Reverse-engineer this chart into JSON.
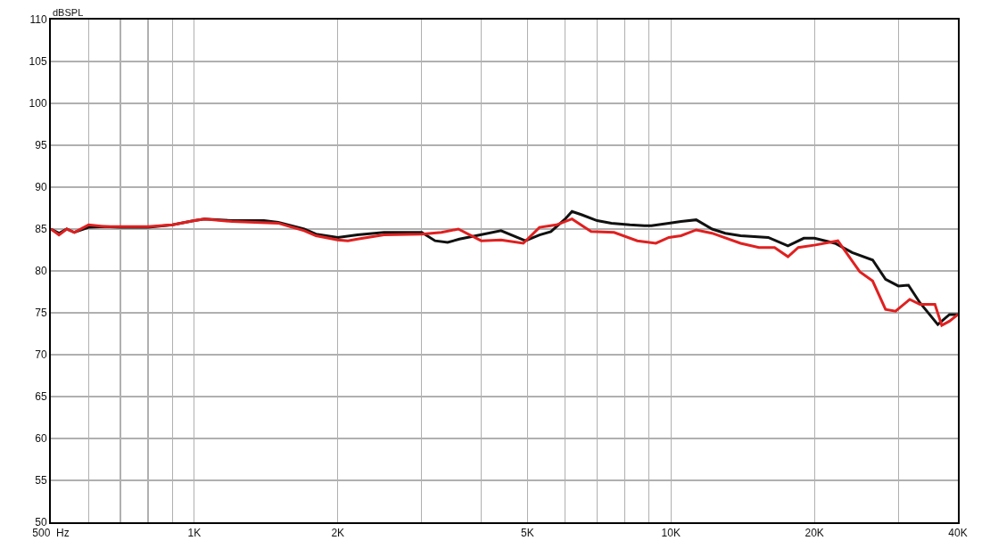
{
  "chart_data": {
    "type": "line",
    "ylabel": "dBSPL",
    "log": "x",
    "grid": true,
    "marker": "none",
    "line_style": "solid",
    "xlim": [
      500,
      40000
    ],
    "ylim": [
      50,
      110
    ],
    "xticks": [
      {
        "value": 500,
        "label": "500  Hz"
      },
      {
        "value": 600,
        "label": null
      },
      {
        "value": 700,
        "label": null
      },
      {
        "value": 800,
        "label": null
      },
      {
        "value": 900,
        "label": null
      },
      {
        "value": 1000,
        "label": "1K"
      },
      {
        "value": 2000,
        "label": "2K"
      },
      {
        "value": 3000,
        "label": null
      },
      {
        "value": 4000,
        "label": null
      },
      {
        "value": 5000,
        "label": "5K"
      },
      {
        "value": 6000,
        "label": null
      },
      {
        "value": 7000,
        "label": null
      },
      {
        "value": 8000,
        "label": null
      },
      {
        "value": 9000,
        "label": null
      },
      {
        "value": 10000,
        "label": "10K"
      },
      {
        "value": 20000,
        "label": "20K"
      },
      {
        "value": 30000,
        "label": null
      },
      {
        "value": 40000,
        "label": "40K"
      }
    ],
    "yticks": [
      50,
      55,
      60,
      65,
      70,
      75,
      80,
      85,
      90,
      95,
      100,
      105,
      110
    ],
    "series": [
      {
        "color": "#111111",
        "x": [
          500,
          520,
          540,
          560,
          600,
          650,
          700,
          800,
          900,
          1000,
          1050,
          1200,
          1400,
          1500,
          1700,
          1800,
          2000,
          2200,
          2500,
          2800,
          3000,
          3200,
          3400,
          3600,
          3900,
          4400,
          4950,
          5300,
          5600,
          6000,
          6200,
          6500,
          7000,
          7500,
          8200,
          8800,
          9100,
          9900,
          10500,
          11300,
          12200,
          13000,
          14000,
          16000,
          17600,
          19000,
          20000,
          22100,
          24000,
          26500,
          28200,
          30000,
          31500,
          33300,
          36300,
          38400,
          40000
        ],
        "values": [
          85.0,
          84.5,
          85.0,
          84.6,
          85.2,
          85.3,
          85.2,
          85.2,
          85.5,
          86.0,
          86.2,
          86.0,
          86.0,
          85.8,
          85.0,
          84.4,
          84.0,
          84.3,
          84.6,
          84.6,
          84.6,
          83.6,
          83.4,
          83.8,
          84.2,
          84.8,
          83.6,
          84.3,
          84.7,
          86.2,
          87.1,
          86.7,
          86.0,
          85.7,
          85.5,
          85.4,
          85.4,
          85.7,
          85.9,
          86.1,
          85.0,
          84.5,
          84.2,
          84.0,
          83.0,
          83.9,
          83.9,
          83.3,
          82.2,
          81.3,
          79.0,
          78.2,
          78.3,
          76.2,
          73.6,
          74.8,
          74.8
        ]
      },
      {
        "color": "#e02020",
        "x": [
          500,
          520,
          540,
          560,
          600,
          650,
          700,
          800,
          900,
          1000,
          1050,
          1200,
          1500,
          1700,
          1800,
          2000,
          2100,
          2200,
          2500,
          3000,
          3300,
          3580,
          4000,
          4400,
          4900,
          5300,
          5750,
          6200,
          6800,
          7600,
          8500,
          9300,
          9900,
          10500,
          11300,
          12200,
          14000,
          15300,
          16500,
          17600,
          18500,
          20100,
          22400,
          24900,
          26500,
          28200,
          29600,
          31700,
          33300,
          35800,
          37000,
          38400,
          40000
        ],
        "values": [
          85.0,
          84.3,
          85.0,
          84.6,
          85.5,
          85.3,
          85.3,
          85.3,
          85.5,
          86.0,
          86.2,
          85.9,
          85.7,
          84.8,
          84.2,
          83.7,
          83.6,
          83.8,
          84.3,
          84.4,
          84.6,
          85.0,
          83.6,
          83.7,
          83.3,
          85.2,
          85.5,
          86.2,
          84.7,
          84.6,
          83.6,
          83.3,
          84.0,
          84.2,
          84.9,
          84.5,
          83.3,
          82.8,
          82.8,
          81.7,
          82.8,
          83.1,
          83.6,
          79.9,
          78.8,
          75.4,
          75.2,
          76.6,
          76.0,
          76.0,
          73.5,
          74.0,
          74.8
        ]
      }
    ]
  }
}
